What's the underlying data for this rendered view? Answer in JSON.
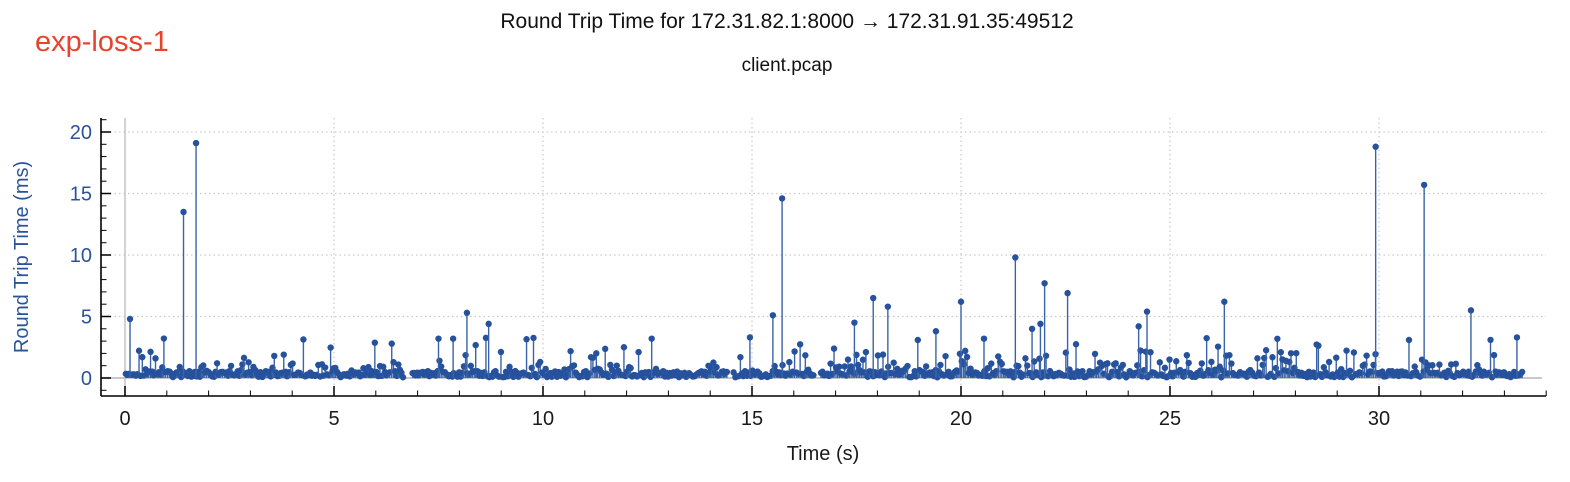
{
  "header": {
    "annotation_label": "exp-loss-1"
  },
  "chart_data": {
    "type": "stem",
    "title": "Round Trip Time for 172.31.82.1:8000 → 172.31.91.35:49512",
    "subtitle": "client.pcap",
    "xlabel": "Time (s)",
    "ylabel": "Round Trip Time (ms)",
    "xlim": [
      -0.6,
      34.0
    ],
    "ylim": [
      -1.5,
      21.1
    ],
    "x_major_ticks": [
      0,
      5,
      10,
      15,
      20,
      25,
      30
    ],
    "y_major_ticks": [
      0,
      5,
      10,
      15,
      20
    ],
    "x_minor_step": 1,
    "y_minor_step": 1,
    "grid": {
      "style": "dotted",
      "x_values": [
        5,
        10,
        15,
        20,
        25,
        30
      ],
      "y_values": [
        5,
        10,
        15,
        20
      ],
      "zero_line_x": 0
    },
    "baseline_y": 0,
    "baseline_end_s": 33.9,
    "notable_spikes": [
      [
        0.12,
        4.8
      ],
      [
        1.4,
        13.5
      ],
      [
        1.7,
        19.1
      ],
      [
        7.5,
        3.2
      ],
      [
        7.85,
        3.2
      ],
      [
        8.18,
        5.3
      ],
      [
        8.7,
        4.4
      ],
      [
        12.6,
        3.2
      ],
      [
        14.95,
        3.3
      ],
      [
        15.5,
        5.1
      ],
      [
        15.72,
        14.6
      ],
      [
        17.45,
        4.5
      ],
      [
        17.9,
        6.5
      ],
      [
        18.25,
        5.8
      ],
      [
        19.4,
        3.8
      ],
      [
        20.0,
        6.2
      ],
      [
        20.55,
        3.2
      ],
      [
        21.3,
        9.8
      ],
      [
        21.7,
        4.0
      ],
      [
        21.9,
        4.4
      ],
      [
        22.0,
        7.7
      ],
      [
        22.55,
        6.9
      ],
      [
        24.25,
        4.2
      ],
      [
        24.45,
        5.4
      ],
      [
        26.3,
        6.2
      ],
      [
        29.92,
        18.8
      ],
      [
        31.08,
        15.7
      ],
      [
        32.2,
        5.5
      ],
      [
        33.3,
        3.3
      ]
    ],
    "baseline_band": {
      "description": "Dense RTT samples mostly 0.05-1.5 ms with occasional 1.5-3.5 ms lollipops; slightly fluffier after ~16.8 s",
      "start_s": 0.02,
      "end_s": 33.45,
      "typical_range_ms": [
        0.05,
        1.5
      ],
      "occasional_range_ms": [
        1.5,
        3.5
      ],
      "samples_per_second": 25,
      "fluffier_after_s": 16.8,
      "gaps_s": [
        [
          6.67,
          6.88
        ],
        [
          14.42,
          14.56
        ],
        [
          16.47,
          16.65
        ]
      ],
      "seed": 1337
    },
    "colors": {
      "stem": "#3a63a8",
      "marker": "#26519c",
      "axis": "#000000",
      "x_tick_label": "#1a1a1a",
      "y_tick_label": "#2a5499",
      "y_axis_label": "#2a5499",
      "title": "#111111",
      "grid": "#c9c9c9",
      "zero_line": "#c6c6c6",
      "baseline": "#b5b5b5",
      "annotation": "#e8432d",
      "background": "#ffffff"
    }
  }
}
